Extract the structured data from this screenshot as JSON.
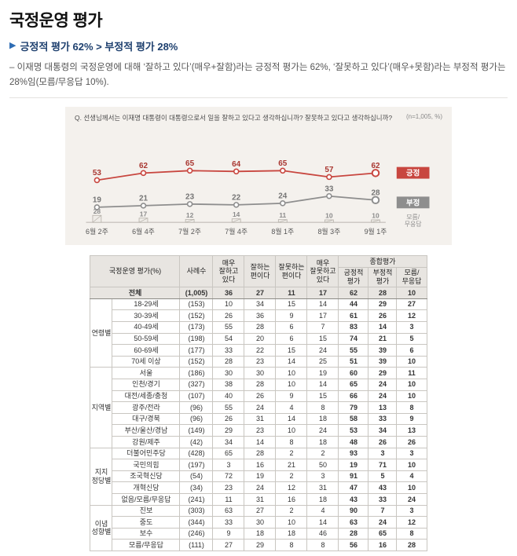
{
  "icons": {
    "subtitle_arrow": "▶"
  },
  "page": {
    "title": "국정운영 평가",
    "subtitle": "긍정적 평가 62% > 부정적 평가 28%",
    "intro": "– 이재명 대통령의 국정운영에 대해 ‘잘하고 있다’(매우+잘함)라는 긍정적 평가는 62%, ‘잘못하고 있다’(매우+못함)라는 부정적 평가는 28%임(모름/무응답 10%)."
  },
  "chart_data": {
    "type": "line",
    "title": "Q. 선생님께서는 이재명 대통령이 대통령으로서 일을 잘하고 있다고 생각하십니까? 잘못하고 있다고 생각하십니까?",
    "n_label": "(n=1,005, %)",
    "categories": [
      "6월 2주",
      "6월 4주",
      "7월 2주",
      "7월 4주",
      "8월 1주",
      "8월 3주",
      "9월 1주"
    ],
    "series": [
      {
        "name": "긍정",
        "color": "#c8463f",
        "label_color": "#a93832",
        "values": [
          53,
          62,
          65,
          64,
          65,
          57,
          62
        ]
      },
      {
        "name": "부정",
        "color": "#8e8e8e",
        "label_color": "#757575",
        "values": [
          19,
          21,
          23,
          22,
          24,
          33,
          28
        ]
      },
      {
        "name": "모름/무응답",
        "color": "#b5b0a9",
        "label_color": "#8b8b8b",
        "values": [
          28,
          17,
          12,
          14,
          11,
          10,
          10
        ]
      }
    ],
    "ylim": [
      0,
      80
    ],
    "legend_position": "right",
    "grid": false
  },
  "table": {
    "headers": {
      "category": "국정운영 평가(%)",
      "n": "사례수",
      "q1": "매우\n잘하고\n있다",
      "q2": "잘하는\n편이다",
      "q3": "잘못하는\n편이다",
      "q4": "매우\n잘못하고\n있다",
      "summary": "종합평가",
      "pos": "긍정적\n평가",
      "neg": "부정적\n평가",
      "dk": "모름/\n무응답"
    },
    "total": {
      "label": "전체",
      "n": "(1,005)",
      "values": [
        36,
        27,
        11,
        17,
        62,
        28,
        10
      ]
    },
    "groups": [
      {
        "name": "연령별",
        "rows": [
          {
            "label": "18-29세",
            "n": "(153)",
            "values": [
              10,
              34,
              15,
              14,
              44,
              29,
              27
            ]
          },
          {
            "label": "30-39세",
            "n": "(152)",
            "values": [
              26,
              36,
              9,
              17,
              61,
              26,
              12
            ]
          },
          {
            "label": "40-49세",
            "n": "(173)",
            "values": [
              55,
              28,
              6,
              7,
              83,
              14,
              3
            ]
          },
          {
            "label": "50-59세",
            "n": "(198)",
            "values": [
              54,
              20,
              6,
              15,
              74,
              21,
              5
            ]
          },
          {
            "label": "60-69세",
            "n": "(177)",
            "values": [
              33,
              22,
              15,
              24,
              55,
              39,
              6
            ]
          },
          {
            "label": "70세 이상",
            "n": "(152)",
            "values": [
              28,
              23,
              14,
              25,
              51,
              39,
              10
            ]
          }
        ]
      },
      {
        "name": "지역별",
        "rows": [
          {
            "label": "서울",
            "n": "(186)",
            "values": [
              30,
              30,
              10,
              19,
              60,
              29,
              11
            ]
          },
          {
            "label": "인천/경기",
            "n": "(327)",
            "values": [
              38,
              28,
              10,
              14,
              65,
              24,
              10
            ]
          },
          {
            "label": "대전/세종/충청",
            "n": "(107)",
            "values": [
              40,
              26,
              9,
              15,
              66,
              24,
              10
            ]
          },
          {
            "label": "광주/전라",
            "n": "(96)",
            "values": [
              55,
              24,
              4,
              8,
              79,
              13,
              8
            ]
          },
          {
            "label": "대구/경북",
            "n": "(96)",
            "values": [
              26,
              31,
              14,
              18,
              58,
              33,
              9
            ]
          },
          {
            "label": "부산/울산/경남",
            "n": "(149)",
            "values": [
              29,
              23,
              10,
              24,
              53,
              34,
              13
            ]
          },
          {
            "label": "강원/제주",
            "n": "(42)",
            "values": [
              34,
              14,
              8,
              18,
              48,
              26,
              26
            ]
          }
        ]
      },
      {
        "name": "지지\n정당별",
        "rows": [
          {
            "label": "더불어민주당",
            "n": "(428)",
            "values": [
              65,
              28,
              2,
              2,
              93,
              3,
              3
            ]
          },
          {
            "label": "국민의힘",
            "n": "(197)",
            "values": [
              3,
              16,
              21,
              50,
              19,
              71,
              10
            ]
          },
          {
            "label": "조국혁신당",
            "n": "(54)",
            "values": [
              72,
              19,
              2,
              3,
              91,
              5,
              4
            ]
          },
          {
            "label": "개혁신당",
            "n": "(34)",
            "values": [
              23,
              24,
              12,
              31,
              47,
              43,
              10
            ]
          },
          {
            "label": "없음/모름/무응답",
            "n": "(241)",
            "values": [
              11,
              31,
              16,
              18,
              43,
              33,
              24
            ]
          }
        ]
      },
      {
        "name": "이념\n성향별",
        "rows": [
          {
            "label": "진보",
            "n": "(303)",
            "values": [
              63,
              27,
              2,
              4,
              90,
              7,
              3
            ]
          },
          {
            "label": "중도",
            "n": "(344)",
            "values": [
              33,
              30,
              10,
              14,
              63,
              24,
              12
            ]
          },
          {
            "label": "보수",
            "n": "(246)",
            "values": [
              9,
              18,
              18,
              46,
              28,
              65,
              8
            ]
          },
          {
            "label": "모름/무응답",
            "n": "(111)",
            "values": [
              27,
              29,
              8,
              8,
              56,
              16,
              28
            ]
          }
        ]
      }
    ]
  }
}
